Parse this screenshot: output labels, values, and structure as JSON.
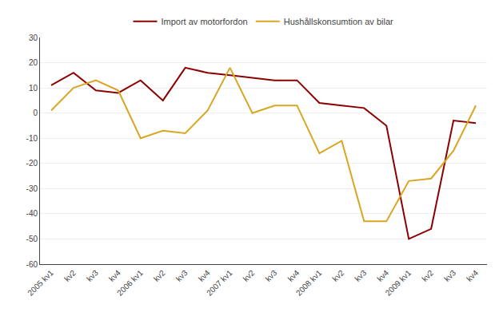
{
  "chart_data": {
    "type": "line",
    "categories": [
      "2005 kv1",
      "kv2",
      "kv3",
      "kv4",
      "2006 kv1",
      "kv2",
      "kv3",
      "kv4",
      "2007 kv1",
      "kv2",
      "kv3",
      "kv4",
      "2008 kv1",
      "kv2",
      "kv3",
      "kv4",
      "2009 kv1",
      "kv2",
      "kv3",
      "kv4"
    ],
    "series": [
      {
        "name": "Import av motorfordon",
        "color": "#8B0000",
        "values": [
          11,
          16,
          9,
          8,
          13,
          5,
          18,
          16,
          15,
          14,
          13,
          13,
          4,
          3,
          2,
          -5,
          -50,
          -46,
          -3,
          -4
        ]
      },
      {
        "name": "Hushållskonsumtion av bilar",
        "color": "#DAA520",
        "values": [
          1,
          10,
          13,
          9,
          -10,
          -7,
          -8,
          1,
          18,
          0,
          3,
          3,
          -16,
          -11,
          -43,
          -43,
          -27,
          -26,
          -15,
          3
        ]
      }
    ],
    "ylim": [
      -60,
      30
    ],
    "yticks": [
      -60,
      -50,
      -40,
      -30,
      -20,
      -10,
      0,
      10,
      20,
      30
    ],
    "grid": true,
    "legend": "top"
  }
}
